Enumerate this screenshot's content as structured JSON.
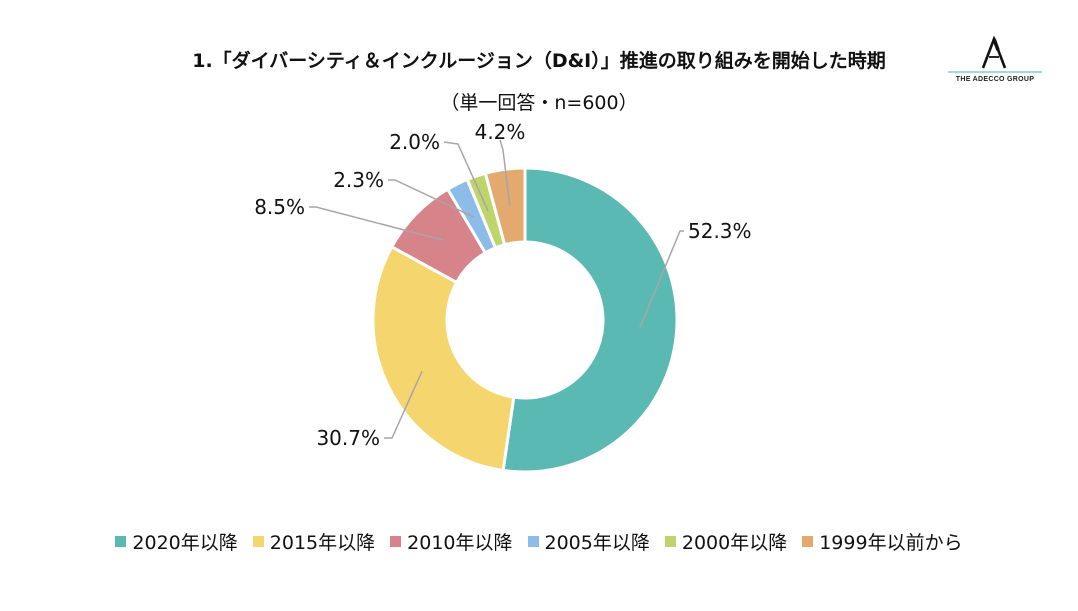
{
  "chart_data": {
    "type": "pie",
    "title": "1.「ダイバーシティ＆インクルージョン（D&I）」推進の取り組みを開始した時期",
    "subtitle": "（単一回答・n=600）",
    "categories": [
      "2020年以降",
      "2015年以降",
      "2010年以降",
      "2005年以降",
      "2000年以降",
      "1999年以前から"
    ],
    "values": [
      52.3,
      30.7,
      8.5,
      2.3,
      2.0,
      4.2
    ],
    "data_labels": [
      "52.3%",
      "30.7%",
      "8.5%",
      "2.3%",
      "2.0%",
      "4.2%"
    ],
    "colors": [
      "#5bb9b3",
      "#f5d56e",
      "#d7838a",
      "#8cbde9",
      "#bfd56b",
      "#e3a96e"
    ],
    "legend_position": "bottom",
    "donut": true
  },
  "logo": {
    "text": "THE ADECCO GROUP",
    "icon": "adecco-a-logo-icon"
  }
}
